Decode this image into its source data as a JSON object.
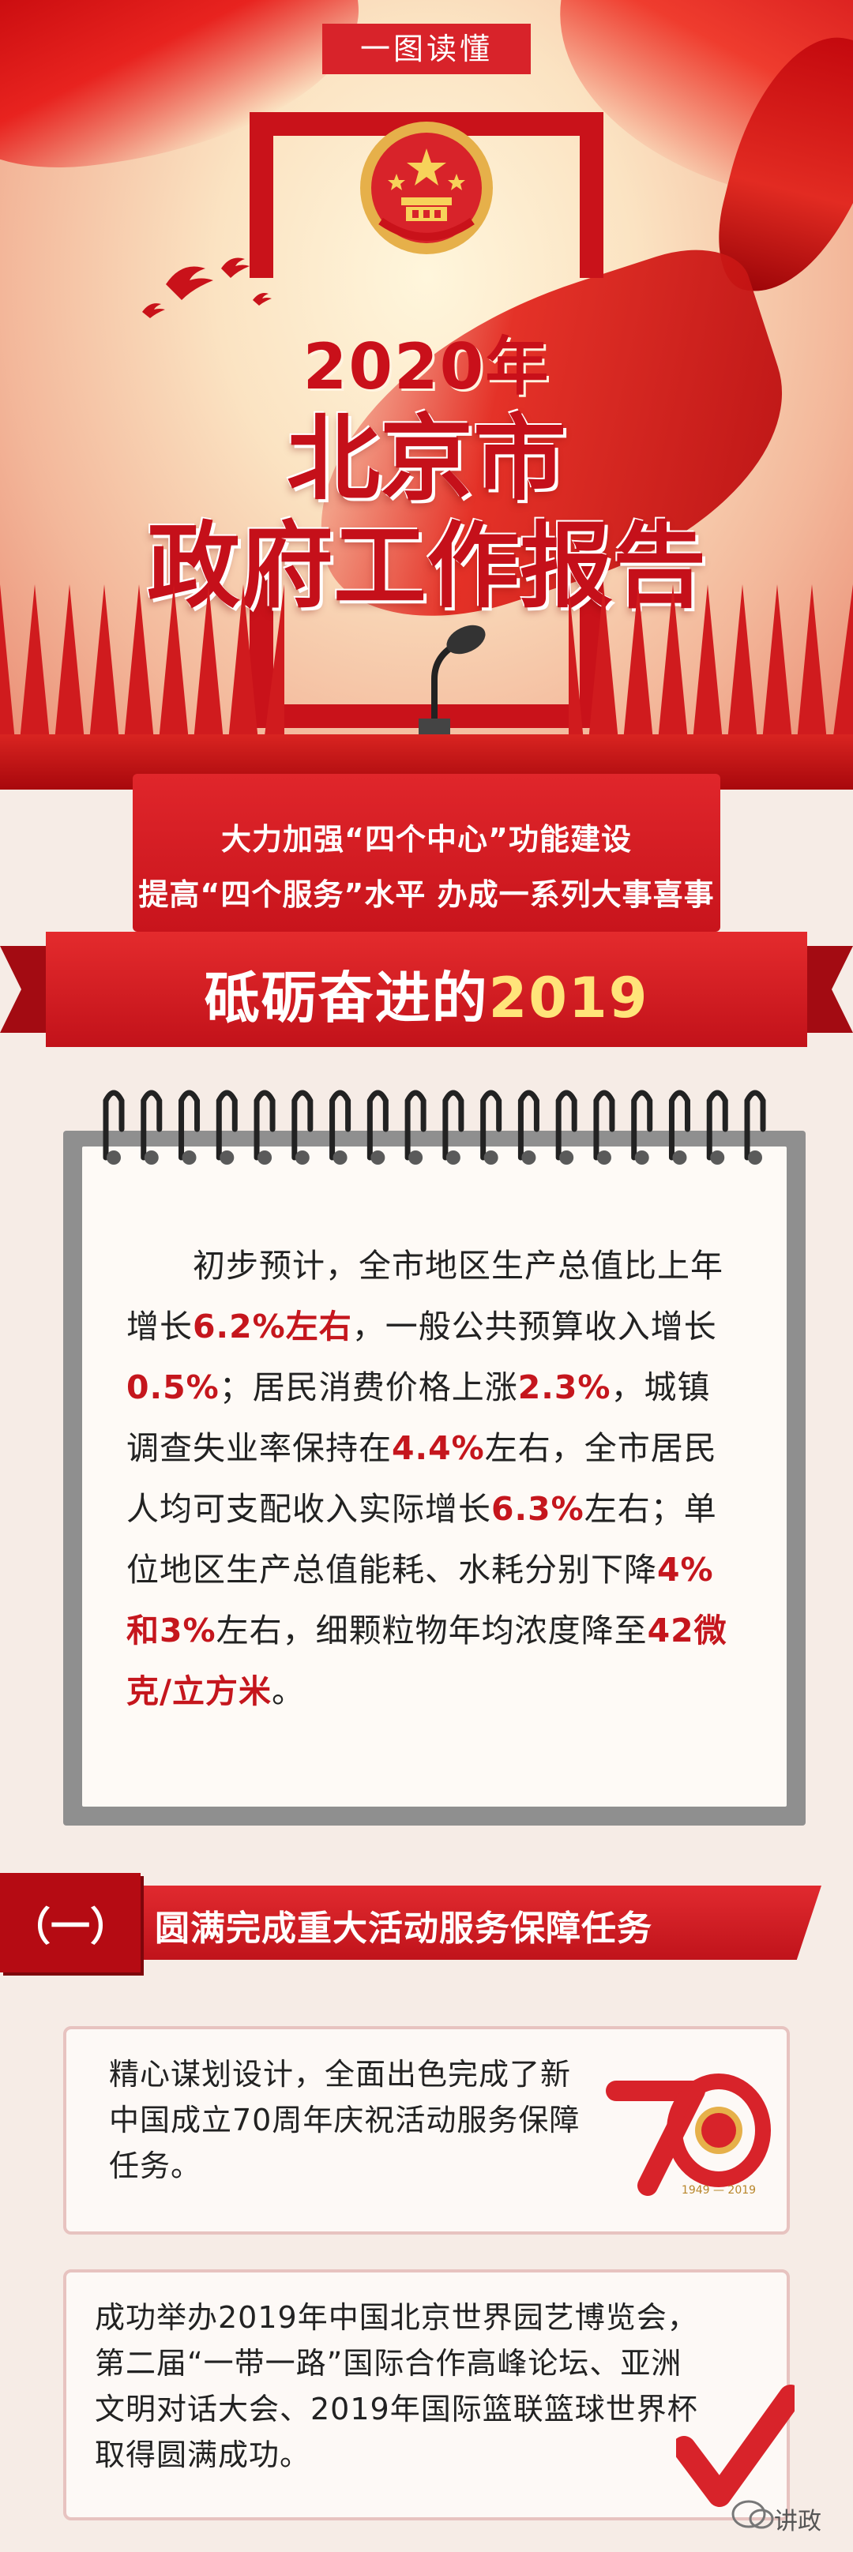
{
  "badge": "一图读懂",
  "hero": {
    "year": "2020年",
    "title_line1": "北京市",
    "title_line2": "政府工作报告"
  },
  "subtitle": {
    "line1": "大力加强“四个中心”功能建设",
    "line2": "提高“四个服务”水平 办成一系列大事喜事"
  },
  "ribbon": {
    "text": "砥砺奋进的",
    "year": "2019"
  },
  "notebook": {
    "segments": [
      {
        "t": "初步预计，全市地区生产总值比上年增长",
        "h": false
      },
      {
        "t": "6.2%左右",
        "h": true
      },
      {
        "t": "，一般公共预算收入增长",
        "h": false
      },
      {
        "t": "0.5%",
        "h": true
      },
      {
        "t": "；居民消费价格上涨",
        "h": false
      },
      {
        "t": "2.3%",
        "h": true
      },
      {
        "t": "，城镇调查失业率保持在",
        "h": false
      },
      {
        "t": "4.4%",
        "h": true
      },
      {
        "t": "左右，全市居民人均可支配收入实际增长",
        "h": false
      },
      {
        "t": "6.3%",
        "h": true
      },
      {
        "t": "左右；单位地区生产总值能耗、水耗分别下降",
        "h": false
      },
      {
        "t": "4%和3%",
        "h": true
      },
      {
        "t": "左右，细颗粒物年均浓度降至",
        "h": false
      },
      {
        "t": "42微克/立方米",
        "h": true
      },
      {
        "t": "。",
        "h": false
      }
    ]
  },
  "section": {
    "number": "（一）",
    "title": "圆满完成重大活动服务保障任务"
  },
  "cards": {
    "card1": "精心谋划设计，全面出色完成了新中国成立70周年庆祝活动服务保障任务。",
    "card2": "成功举办2019年中国北京世界园艺博览会，第二届“一带一路”国际合作高峰论坛、亚洲文明对话大会、2019年国际篮联篮球世界杯取得圆满成功。",
    "logo_text": "1949 — 2019"
  },
  "watermark": "讲政",
  "colors": {
    "primary_red": "#c9121a",
    "highlight_red": "#c5161d",
    "gold": "#ffe47a"
  },
  "icons": [
    "national-emblem-icon",
    "microphone-icon",
    "dove-icon",
    "seventy-anniversary-logo-icon",
    "checkmark-icon",
    "wechat-icon"
  ]
}
